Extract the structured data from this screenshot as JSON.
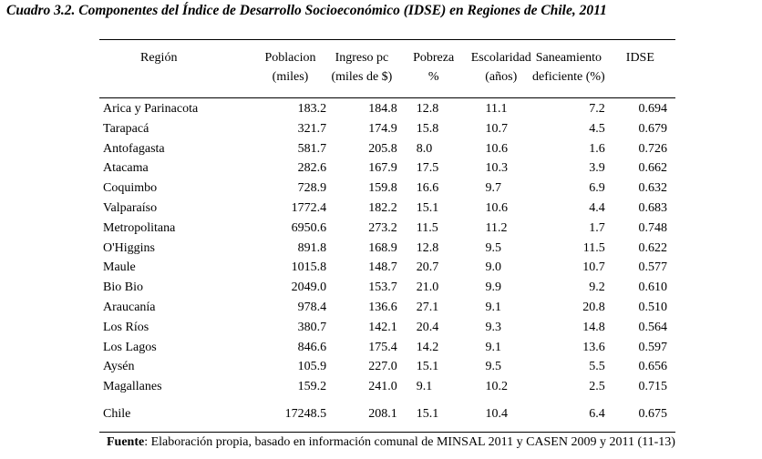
{
  "caption": "Cuadro 3.2. Componentes del Índice de Desarrollo Socioeconómico (IDSE) en Regiones de Chile, 2011",
  "headers": {
    "region": [
      "Región",
      ""
    ],
    "poblacion": [
      "Poblacion",
      "(miles)"
    ],
    "ingreso": [
      "Ingreso pc",
      "(miles de $)"
    ],
    "pobreza": [
      "Pobreza",
      "%"
    ],
    "escolaridad": [
      "Escolaridad",
      "(años)"
    ],
    "saneamiento": [
      "Saneamiento",
      "deficiente (%)"
    ],
    "idse": [
      "IDSE",
      ""
    ]
  },
  "rows": [
    {
      "region": "Arica y Parinacota",
      "poblacion": "183.2",
      "ingreso": "184.8",
      "pobreza": "12.8",
      "escolaridad": "11.1",
      "saneamiento": "7.2",
      "idse": "0.694"
    },
    {
      "region": "Tarapacá",
      "poblacion": "321.7",
      "ingreso": "174.9",
      "pobreza": "15.8",
      "escolaridad": "10.7",
      "saneamiento": "4.5",
      "idse": "0.679"
    },
    {
      "region": "Antofagasta",
      "poblacion": "581.7",
      "ingreso": "205.8",
      "pobreza": "8.0",
      "escolaridad": "10.6",
      "saneamiento": "1.6",
      "idse": "0.726"
    },
    {
      "region": "Atacama",
      "poblacion": "282.6",
      "ingreso": "167.9",
      "pobreza": "17.5",
      "escolaridad": "10.3",
      "saneamiento": "3.9",
      "idse": "0.662"
    },
    {
      "region": "Coquimbo",
      "poblacion": "728.9",
      "ingreso": "159.8",
      "pobreza": "16.6",
      "escolaridad": "9.7",
      "saneamiento": "6.9",
      "idse": "0.632"
    },
    {
      "region": "Valparaíso",
      "poblacion": "1772.4",
      "ingreso": "182.2",
      "pobreza": "15.1",
      "escolaridad": "10.6",
      "saneamiento": "4.4",
      "idse": "0.683"
    },
    {
      "region": "Metropolitana",
      "poblacion": "6950.6",
      "ingreso": "273.2",
      "pobreza": "11.5",
      "escolaridad": "11.2",
      "saneamiento": "1.7",
      "idse": "0.748"
    },
    {
      "region": "O'Higgins",
      "poblacion": "891.8",
      "ingreso": "168.9",
      "pobreza": "12.8",
      "escolaridad": "9.5",
      "saneamiento": "11.5",
      "idse": "0.622"
    },
    {
      "region": "Maule",
      "poblacion": "1015.8",
      "ingreso": "148.7",
      "pobreza": "20.7",
      "escolaridad": "9.0",
      "saneamiento": "10.7",
      "idse": "0.577"
    },
    {
      "region": "Bio Bio",
      "poblacion": "2049.0",
      "ingreso": "153.7",
      "pobreza": "21.0",
      "escolaridad": "9.9",
      "saneamiento": "9.2",
      "idse": "0.610"
    },
    {
      "region": "Araucanía",
      "poblacion": "978.4",
      "ingreso": "136.6",
      "pobreza": "27.1",
      "escolaridad": "9.1",
      "saneamiento": "20.8",
      "idse": "0.510"
    },
    {
      "region": "Los Ríos",
      "poblacion": "380.7",
      "ingreso": "142.1",
      "pobreza": "20.4",
      "escolaridad": "9.3",
      "saneamiento": "14.8",
      "idse": "0.564"
    },
    {
      "region": "Los Lagos",
      "poblacion": "846.6",
      "ingreso": "175.4",
      "pobreza": "14.2",
      "escolaridad": "9.1",
      "saneamiento": "13.6",
      "idse": "0.597"
    },
    {
      "region": "Aysén",
      "poblacion": "105.9",
      "ingreso": "227.0",
      "pobreza": "15.1",
      "escolaridad": "9.5",
      "saneamiento": "5.5",
      "idse": "0.656"
    },
    {
      "region": "Magallanes",
      "poblacion": "159.2",
      "ingreso": "241.0",
      "pobreza": "9.1",
      "escolaridad": "10.2",
      "saneamiento": "2.5",
      "idse": "0.715"
    }
  ],
  "total": {
    "region": "Chile",
    "poblacion": "17248.5",
    "ingreso": "208.1",
    "pobreza": "15.1",
    "escolaridad": "10.4",
    "saneamiento": "6.4",
    "idse": "0.675"
  },
  "source": {
    "label": "Fuente",
    "text": ": Elaboración propia, basado en información comunal de MINSAL 2011 y CASEN 2009 y 2011 (11-13)"
  }
}
